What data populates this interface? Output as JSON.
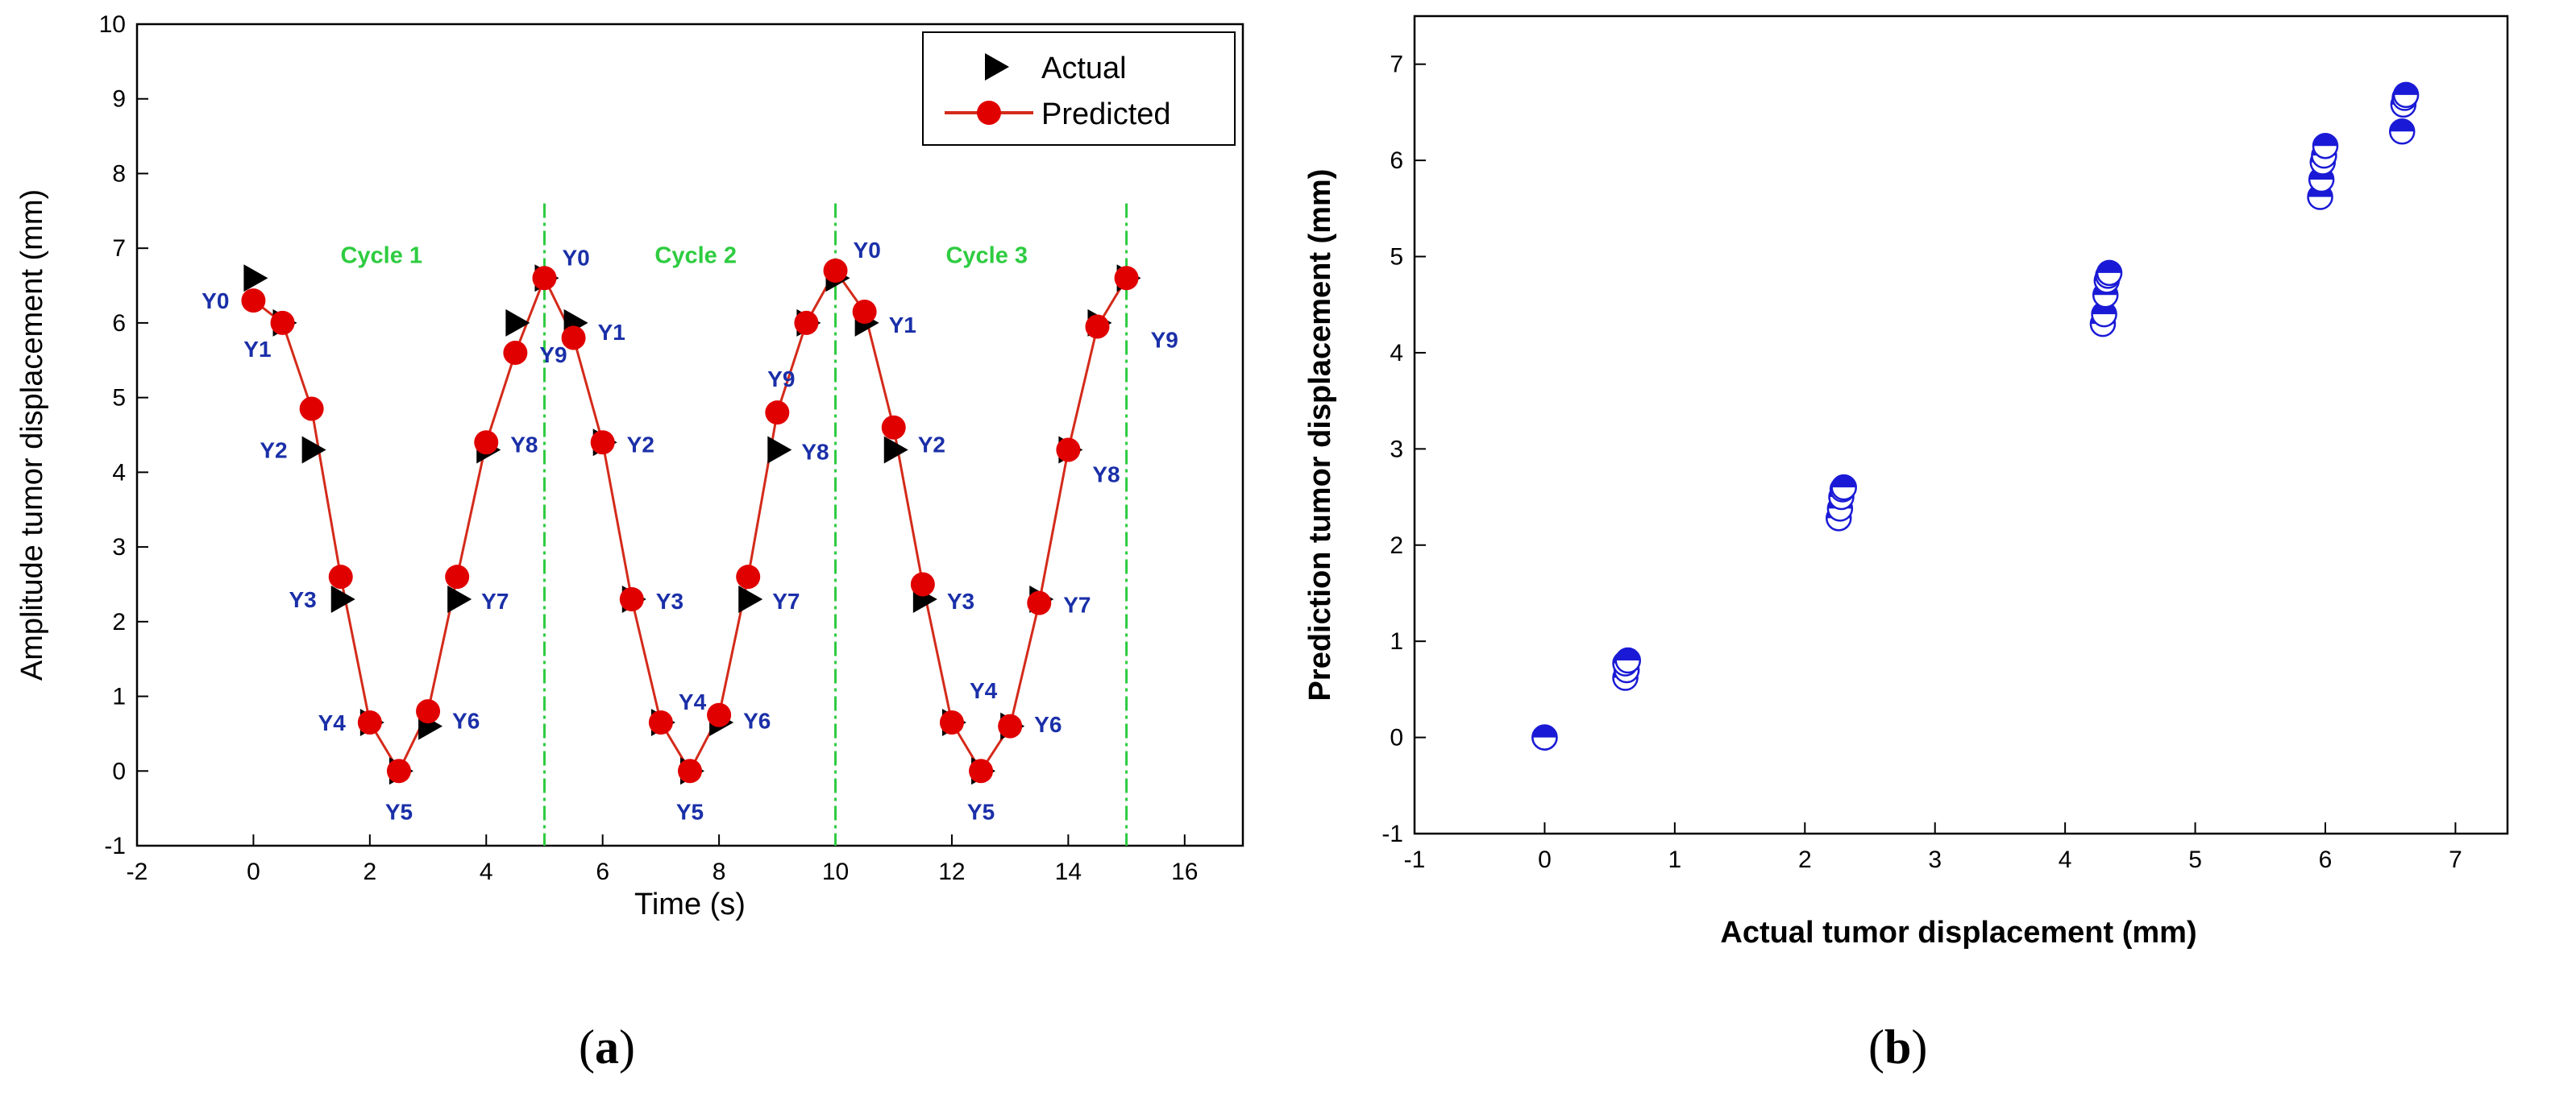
{
  "chart_data": [
    {
      "type": "line",
      "panel_label_open": "(",
      "panel_label_letter": "a",
      "panel_label_close": ")",
      "xlabel": "Time (s)",
      "ylabel": "Amplitude tumor displacement (mm)",
      "xlim": [
        -2,
        17
      ],
      "ylim": [
        -1,
        10
      ],
      "xticks": [
        "-2",
        "0",
        "2",
        "4",
        "6",
        "8",
        "10",
        "12",
        "14",
        "16"
      ],
      "yticks": [
        "-1",
        "0",
        "1",
        "2",
        "3",
        "4",
        "5",
        "6",
        "7",
        "8",
        "9",
        "10"
      ],
      "legend": {
        "position": "top-right",
        "actual": "Actual",
        "predicted": "Predicted"
      },
      "colors": {
        "actual": "#000000",
        "predicted": "#e00000",
        "line": "#d42a1a",
        "labels": "#1a2fa8",
        "cycle": "#2ecc40"
      },
      "cycle_lines": [
        5,
        10,
        15
      ],
      "cycle_labels": [
        {
          "text": "Cycle 1",
          "x": 2.2,
          "y": 6.8
        },
        {
          "text": "Cycle 2",
          "x": 7.6,
          "y": 6.8
        },
        {
          "text": "Cycle 3",
          "x": 12.6,
          "y": 6.8
        }
      ],
      "series": [
        {
          "name": "Actual",
          "x": [
            0,
            0.5,
            1,
            1.5,
            2,
            2.5,
            3,
            3.5,
            4,
            4.5,
            5,
            5.5,
            6,
            6.5,
            7,
            7.5,
            8,
            8.5,
            9,
            9.5,
            10,
            10.5,
            11,
            11.5,
            12,
            12.5,
            13,
            13.5,
            14,
            14.5,
            15
          ],
          "values": [
            6.6,
            6.0,
            4.3,
            2.3,
            0.65,
            0.0,
            0.6,
            2.3,
            4.3,
            6.0,
            6.6,
            6.0,
            4.4,
            2.3,
            0.65,
            0.0,
            0.65,
            2.3,
            4.3,
            6.0,
            6.6,
            6.0,
            4.3,
            2.3,
            0.65,
            0.0,
            0.6,
            2.3,
            4.3,
            6.0,
            6.6
          ]
        },
        {
          "name": "Predicted",
          "x": [
            0,
            0.5,
            1,
            1.5,
            2,
            2.5,
            3,
            3.5,
            4,
            4.5,
            5,
            5.5,
            6,
            6.5,
            7,
            7.5,
            8,
            8.5,
            9,
            9.5,
            10,
            10.5,
            11,
            11.5,
            12,
            12.5,
            13,
            13.5,
            14,
            14.5,
            15
          ],
          "values": [
            6.3,
            6.0,
            4.85,
            2.6,
            0.65,
            0.0,
            0.8,
            2.6,
            4.4,
            5.6,
            6.6,
            5.8,
            4.4,
            2.3,
            0.65,
            0.0,
            0.75,
            2.6,
            4.8,
            6.0,
            6.7,
            6.15,
            4.6,
            2.5,
            0.65,
            0.0,
            0.6,
            2.25,
            4.3,
            5.95,
            6.6
          ]
        }
      ],
      "point_labels": [
        {
          "text": "Y0",
          "x": 0,
          "y": 6.3,
          "pos": "left"
        },
        {
          "text": "Y1",
          "x": 0.5,
          "y": 6.0,
          "pos": "below-left"
        },
        {
          "text": "Y2",
          "x": 1,
          "y": 4.3,
          "pos": "left"
        },
        {
          "text": "Y3",
          "x": 1.5,
          "y": 2.3,
          "pos": "left"
        },
        {
          "text": "Y4",
          "x": 2,
          "y": 0.65,
          "pos": "left"
        },
        {
          "text": "Y5",
          "x": 2.5,
          "y": 0.0,
          "pos": "below"
        },
        {
          "text": "Y6",
          "x": 3,
          "y": 0.7,
          "pos": "right"
        },
        {
          "text": "Y7",
          "x": 3.5,
          "y": 2.3,
          "pos": "right"
        },
        {
          "text": "Y8",
          "x": 4,
          "y": 4.4,
          "pos": "right"
        },
        {
          "text": "Y9",
          "x": 4.5,
          "y": 5.6,
          "pos": "right"
        },
        {
          "text": "Y0",
          "x": 5,
          "y": 6.6,
          "pos": "right-up"
        },
        {
          "text": "Y1",
          "x": 5.5,
          "y": 5.9,
          "pos": "right"
        },
        {
          "text": "Y2",
          "x": 6,
          "y": 4.4,
          "pos": "right"
        },
        {
          "text": "Y3",
          "x": 6.5,
          "y": 2.3,
          "pos": "right"
        },
        {
          "text": "Y4",
          "x": 7,
          "y": 0.65,
          "pos": "right-up"
        },
        {
          "text": "Y5",
          "x": 7.5,
          "y": 0.0,
          "pos": "below"
        },
        {
          "text": "Y6",
          "x": 8,
          "y": 0.7,
          "pos": "right"
        },
        {
          "text": "Y7",
          "x": 8.5,
          "y": 2.3,
          "pos": "right"
        },
        {
          "text": "Y8",
          "x": 9,
          "y": 4.3,
          "pos": "right"
        },
        {
          "text": "Y9",
          "x": 9.5,
          "y": 5.6,
          "pos": "below-left"
        },
        {
          "text": "Y0",
          "x": 10,
          "y": 6.7,
          "pos": "right-up"
        },
        {
          "text": "Y1",
          "x": 10.5,
          "y": 6.0,
          "pos": "right"
        },
        {
          "text": "Y2",
          "x": 11,
          "y": 4.4,
          "pos": "right"
        },
        {
          "text": "Y3",
          "x": 11.5,
          "y": 2.3,
          "pos": "right"
        },
        {
          "text": "Y4",
          "x": 12,
          "y": 0.8,
          "pos": "right-up"
        },
        {
          "text": "Y5",
          "x": 12.5,
          "y": 0.0,
          "pos": "below"
        },
        {
          "text": "Y6",
          "x": 13,
          "y": 0.65,
          "pos": "right"
        },
        {
          "text": "Y7",
          "x": 13.5,
          "y": 2.25,
          "pos": "right"
        },
        {
          "text": "Y8",
          "x": 14,
          "y": 4.0,
          "pos": "right"
        },
        {
          "text": "Y9",
          "x": 15,
          "y": 5.8,
          "pos": "right"
        }
      ]
    },
    {
      "type": "scatter",
      "panel_label_open": "(",
      "panel_label_letter": "b",
      "panel_label_close": ")",
      "xlabel": "Actual tumor displacement (mm)",
      "ylabel": "Prediction tumor displacement (mm)",
      "xlim": [
        -1,
        7.4
      ],
      "ylim": [
        -1,
        7.5
      ],
      "xticks": [
        "-1",
        "0",
        "1",
        "2",
        "3",
        "4",
        "5",
        "6",
        "7"
      ],
      "yticks": [
        "-1",
        "0",
        "1",
        "2",
        "3",
        "4",
        "5",
        "6",
        "7"
      ],
      "colors": {
        "marker": "#1a1ad6"
      },
      "x": [
        0,
        0,
        0.62,
        0.63,
        0.62,
        0.64,
        2.26,
        2.27,
        2.28,
        2.29,
        2.3,
        4.29,
        4.3,
        4.31,
        4.32,
        4.33,
        4.34,
        5.96,
        5.97,
        5.98,
        5.99,
        6.0,
        6.59,
        6.6,
        6.61,
        6.62
      ],
      "y": [
        0,
        0,
        0.62,
        0.7,
        0.77,
        0.8,
        2.28,
        2.38,
        2.5,
        2.58,
        2.6,
        4.3,
        4.4,
        4.6,
        4.75,
        4.8,
        4.83,
        5.62,
        5.8,
        5.98,
        6.05,
        6.15,
        6.3,
        6.58,
        6.65,
        6.68
      ]
    }
  ]
}
